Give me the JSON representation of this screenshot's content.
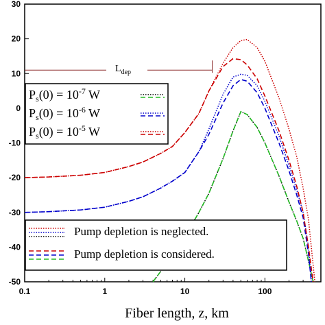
{
  "chart_data": {
    "type": "line",
    "xlabel": "Fiber length, z, km",
    "ylabel": "",
    "xscale": "log",
    "xlim": [
      0.1,
      500
    ],
    "ylim": [
      -50,
      30
    ],
    "x_ticks": [
      "0.1",
      "1",
      "10",
      "100"
    ],
    "y_ticks": [
      "30",
      "20",
      "10",
      "0",
      "-10",
      "-20",
      "-30",
      "-40",
      "-50"
    ],
    "annotation": {
      "label": "L",
      "subscript": "dep",
      "y": 11,
      "x_end": 22
    },
    "legend_top": [
      {
        "label": "P",
        "sub": "s",
        "arg": "(0) = 10",
        "exp": "-7",
        "unit": " W",
        "color_neglected": "#000000",
        "color_considered": "#22bb22"
      },
      {
        "label": "P",
        "sub": "s",
        "arg": "(0) = 10",
        "exp": "-6",
        "unit": " W",
        "color_neglected": "#0000cc",
        "color_considered": "#0000cc"
      },
      {
        "label": "P",
        "sub": "s",
        "arg": "(0) = 10",
        "exp": "-5",
        "unit": " W",
        "color_neglected": "#cc0000",
        "color_considered": "#cc0000"
      }
    ],
    "legend_bottom": [
      {
        "label": "Pump depletion is neglected.",
        "style": "dotted"
      },
      {
        "label": "Pump depletion is considered.",
        "style": "dashed"
      }
    ],
    "series": [
      {
        "group": "Ps=1e-7",
        "mode": "neglected",
        "color": "#000000",
        "style": "dotted",
        "x": [
          4,
          5,
          7,
          10,
          15,
          20,
          30,
          40,
          50,
          60,
          80,
          100,
          150,
          200,
          250,
          300,
          350,
          400
        ],
        "y": [
          -50,
          -47,
          -42,
          -37,
          -30,
          -24.5,
          -14.5,
          -6.5,
          -1,
          -1.8,
          -5.5,
          -10,
          -19.5,
          -27,
          -32.5,
          -37.5,
          -44,
          -50
        ]
      },
      {
        "group": "Ps=1e-7",
        "mode": "considered",
        "color": "#22bb22",
        "style": "dashed",
        "x": [
          4,
          5,
          7,
          10,
          15,
          20,
          30,
          40,
          50,
          60,
          80,
          100,
          150,
          200,
          250,
          300,
          350,
          400
        ],
        "y": [
          -50,
          -47,
          -42,
          -37,
          -30,
          -24.5,
          -14.5,
          -6.5,
          -1,
          -1.8,
          -5.5,
          -10,
          -19.5,
          -27,
          -32.5,
          -37.5,
          -44,
          -50
        ]
      },
      {
        "group": "Ps=1e-6",
        "mode": "neglected",
        "color": "#0000cc",
        "style": "dotted",
        "x": [
          0.1,
          0.2,
          0.5,
          1,
          2,
          3,
          5,
          7,
          10,
          15,
          20,
          30,
          40,
          50,
          60,
          80,
          100,
          150,
          200,
          250,
          300,
          350,
          380
        ],
        "y": [
          -30,
          -29.8,
          -29.3,
          -28.5,
          -26.8,
          -25.5,
          -23,
          -21,
          -18.5,
          -12.5,
          -6,
          4,
          9,
          9.8,
          9.5,
          6.5,
          2,
          -8,
          -16.5,
          -23.5,
          -30,
          -40,
          -50
        ]
      },
      {
        "group": "Ps=1e-6",
        "mode": "considered",
        "color": "#0000cc",
        "style": "dashed",
        "x": [
          0.1,
          0.2,
          0.5,
          1,
          2,
          3,
          5,
          7,
          10,
          15,
          20,
          30,
          40,
          50,
          60,
          80,
          100,
          150,
          200,
          250,
          300,
          350,
          380
        ],
        "y": [
          -30,
          -29.8,
          -29.3,
          -28.5,
          -26.8,
          -25.5,
          -23,
          -21,
          -18.5,
          -12.5,
          -7.5,
          1.5,
          6.5,
          8.3,
          7.8,
          4.5,
          0,
          -10,
          -18,
          -25,
          -31.5,
          -42,
          -50
        ]
      },
      {
        "group": "Ps=1e-5",
        "mode": "neglected",
        "color": "#cc0000",
        "style": "dotted",
        "x": [
          0.1,
          0.2,
          0.5,
          1,
          2,
          3,
          5,
          7,
          10,
          15,
          20,
          30,
          40,
          50,
          60,
          80,
          100,
          150,
          200,
          250,
          300,
          350,
          420
        ],
        "y": [
          -20,
          -19.8,
          -19.3,
          -18.5,
          -16.8,
          -15.5,
          -13,
          -11,
          -7,
          -1.5,
          5,
          13,
          17.5,
          19.5,
          19.8,
          17.5,
          13.5,
          3,
          -6,
          -14,
          -23,
          -32,
          -50
        ]
      },
      {
        "group": "Ps=1e-5",
        "mode": "considered",
        "color": "#cc0000",
        "style": "dashed",
        "x": [
          0.1,
          0.2,
          0.5,
          1,
          2,
          3,
          5,
          7,
          10,
          15,
          20,
          30,
          40,
          50,
          60,
          80,
          100,
          150,
          200,
          250,
          300,
          350,
          400
        ],
        "y": [
          -20,
          -19.8,
          -19.3,
          -18.5,
          -16.8,
          -15.5,
          -13,
          -11,
          -7,
          -1.5,
          5,
          12,
          14.3,
          14,
          12.5,
          8.5,
          3.5,
          -6.5,
          -15,
          -22.5,
          -30,
          -40,
          -50
        ]
      }
    ]
  }
}
